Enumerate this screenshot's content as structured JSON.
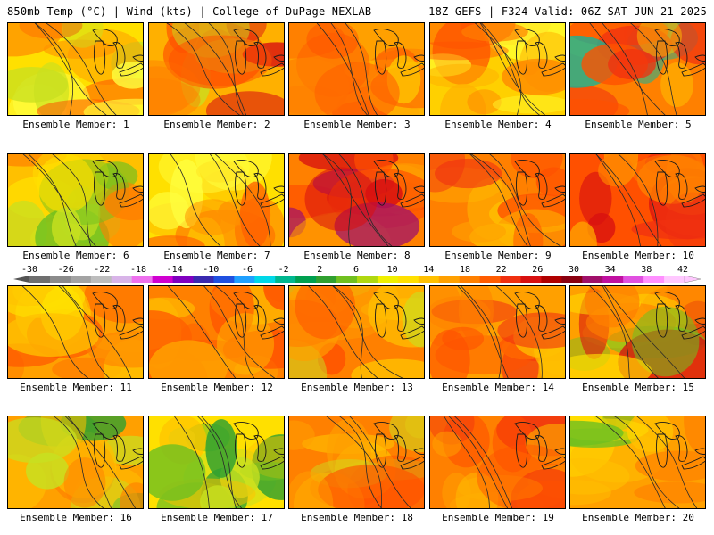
{
  "header": {
    "title_left": "850mb Temp (°C) | Wind (kts) | College of DuPage NEXLAB",
    "title_right": "18Z GEFS | F324 Valid: 06Z SAT JUN 21 2025"
  },
  "colorbar": {
    "labels": [
      "-30",
      "-26",
      "-22",
      "-18",
      "-14",
      "-10",
      "-6",
      "-2",
      "2",
      "6",
      "10",
      "14",
      "18",
      "22",
      "26",
      "30",
      "34",
      "38",
      "42"
    ],
    "colors": [
      "#6f6f6f",
      "#8b8b8b",
      "#a3a3a3",
      "#bdbdbd",
      "#d8b4e8",
      "#ee70ee",
      "#d000d0",
      "#8000c0",
      "#3a2ab0",
      "#2050e0",
      "#1fa0ff",
      "#00d8e8",
      "#00b890",
      "#00a050",
      "#30a030",
      "#70c020",
      "#b0d810",
      "#f0f000",
      "#ffe000",
      "#ffc000",
      "#ffa000",
      "#ff8000",
      "#ff5c00",
      "#f03010",
      "#d81010",
      "#b00000",
      "#8a0010",
      "#a0106a",
      "#c010a0",
      "#e050e0",
      "#ff90ff",
      "#ffc8ff"
    ]
  },
  "panels": [
    {
      "label": "Ensemble Member: 1",
      "palette": [
        "#ffe000",
        "#ffff40",
        "#c8e020",
        "#ff9000",
        "#ff5000"
      ]
    },
    {
      "label": "Ensemble Member: 2",
      "palette": [
        "#ffb000",
        "#ff8000",
        "#ff5000",
        "#d81010",
        "#c8e020"
      ]
    },
    {
      "label": "Ensemble Member: 3",
      "palette": [
        "#ffa000",
        "#ff8000",
        "#ff6000",
        "#ffc000",
        "#ff5000"
      ]
    },
    {
      "label": "Ensemble Member: 4",
      "palette": [
        "#ffd000",
        "#ffb000",
        "#ff8000",
        "#ffff30",
        "#ff5000"
      ]
    },
    {
      "label": "Ensemble Member: 5",
      "palette": [
        "#ff8000",
        "#ff5000",
        "#f03010",
        "#ffc000",
        "#20b090"
      ]
    },
    {
      "label": "Ensemble Member: 6",
      "palette": [
        "#ffc000",
        "#ffe000",
        "#c8e020",
        "#70c020",
        "#ff8000"
      ]
    },
    {
      "label": "Ensemble Member: 7",
      "palette": [
        "#ffe000",
        "#ffc000",
        "#ffff40",
        "#ff9000",
        "#ff6000"
      ]
    },
    {
      "label": "Ensemble Member: 8",
      "palette": [
        "#ff8000",
        "#ff5000",
        "#d81010",
        "#ffa000",
        "#a0106a"
      ]
    },
    {
      "label": "Ensemble Member: 9",
      "palette": [
        "#ff8000",
        "#ff5000",
        "#ffa000",
        "#f03010",
        "#ffc000"
      ]
    },
    {
      "label": "Ensemble Member: 10",
      "palette": [
        "#ff5000",
        "#f03010",
        "#ff8000",
        "#d81010",
        "#ffa000"
      ]
    },
    {
      "label": "Ensemble Member: 11",
      "palette": [
        "#ffa000",
        "#ff8000",
        "#ffc000",
        "#ff5000",
        "#ffe000"
      ]
    },
    {
      "label": "Ensemble Member: 12",
      "palette": [
        "#ff8000",
        "#ff6000",
        "#ffa000",
        "#ff4000",
        "#ffc000"
      ]
    },
    {
      "label": "Ensemble Member: 13",
      "palette": [
        "#ff8000",
        "#ffa000",
        "#ff5000",
        "#ffc000",
        "#c8e020"
      ]
    },
    {
      "label": "Ensemble Member: 14",
      "palette": [
        "#ffa000",
        "#ff8000",
        "#ff5000",
        "#ffc000",
        "#f03010"
      ]
    },
    {
      "label": "Ensemble Member: 15",
      "palette": [
        "#ffa000",
        "#ff8000",
        "#ffe000",
        "#d81010",
        "#70c020"
      ]
    },
    {
      "label": "Ensemble Member: 16",
      "palette": [
        "#ffa000",
        "#ffc000",
        "#c8e020",
        "#30a030",
        "#ff8000"
      ]
    },
    {
      "label": "Ensemble Member: 17",
      "palette": [
        "#ffe000",
        "#c8e020",
        "#70c020",
        "#30a030",
        "#ffc000"
      ]
    },
    {
      "label": "Ensemble Member: 18",
      "palette": [
        "#ff8000",
        "#ff5000",
        "#ffa000",
        "#c8e020",
        "#ffc000"
      ]
    },
    {
      "label": "Ensemble Member: 19",
      "palette": [
        "#ff8000",
        "#ff5000",
        "#ffa000",
        "#ffc000",
        "#f03010"
      ]
    },
    {
      "label": "Ensemble Member: 20",
      "palette": [
        "#ffa000",
        "#ff8000",
        "#ffc000",
        "#ffe000",
        "#70c020"
      ]
    }
  ]
}
